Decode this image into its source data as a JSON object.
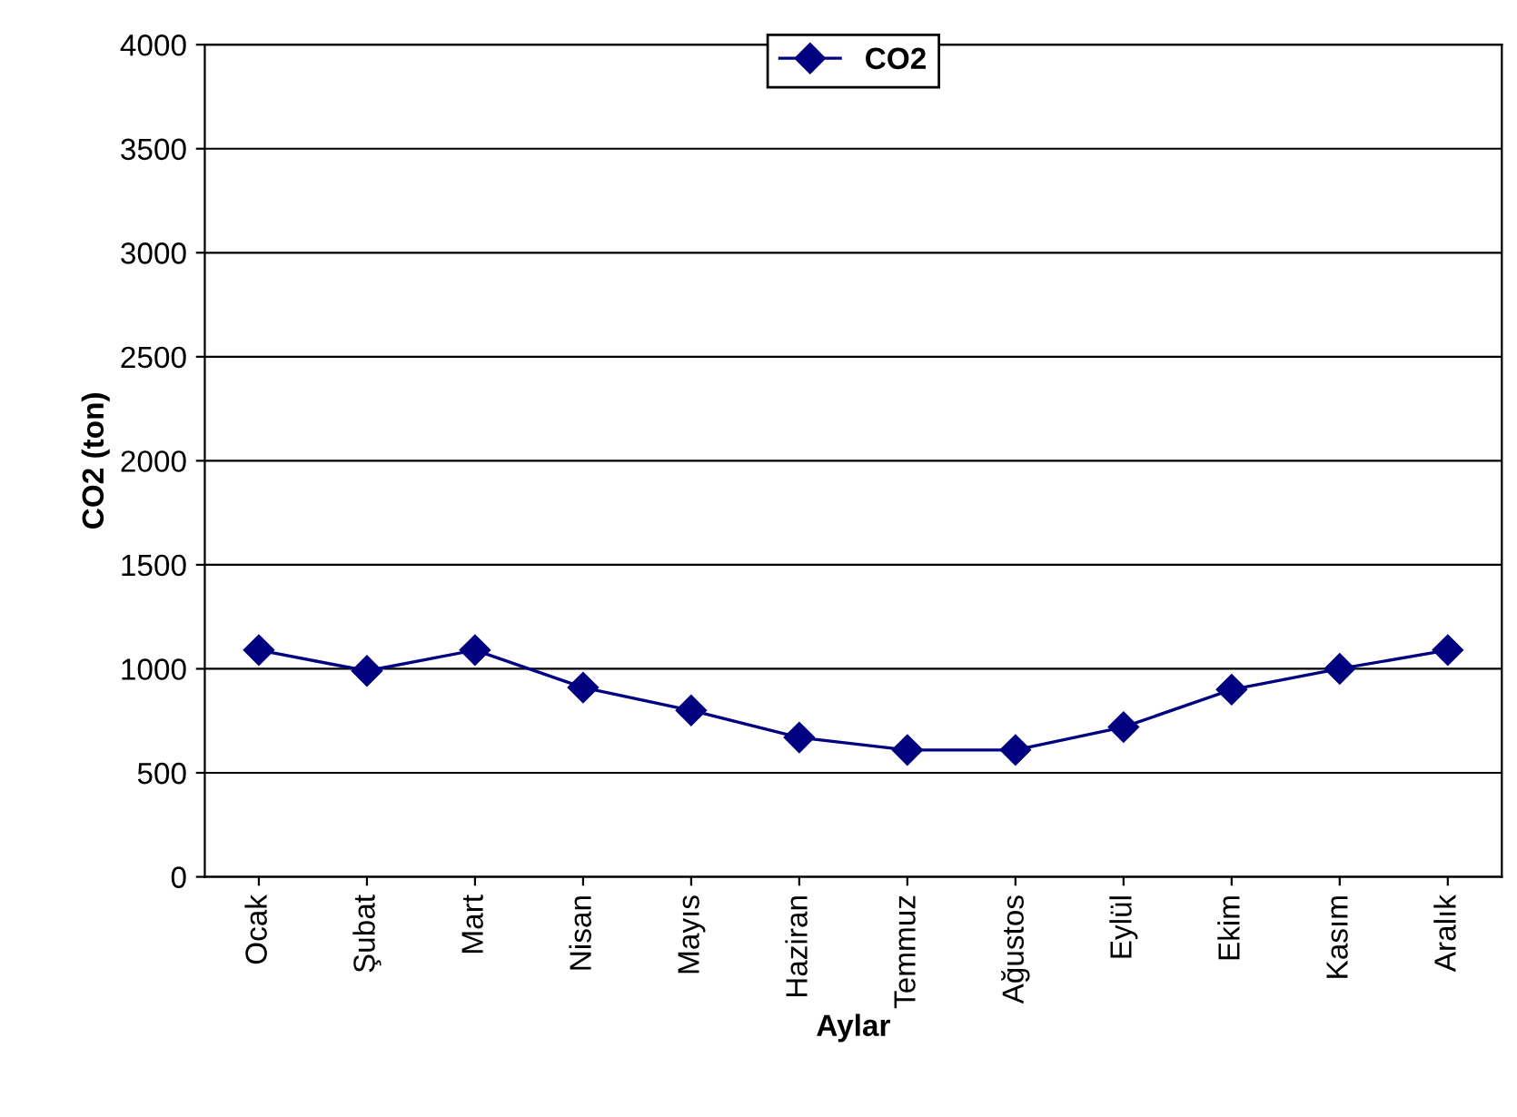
{
  "chart_data": {
    "type": "line",
    "xlabel": "Aylar",
    "ylabel": "CO2 (ton)",
    "categories": [
      "Ocak",
      "Şubat",
      "Mart",
      "Nisan",
      "Mayıs",
      "Haziran",
      "Temmuz",
      "Ağustos",
      "Eylül",
      "Ekim",
      "Kasım",
      "Aralık"
    ],
    "series": [
      {
        "name": "CO2",
        "color": "#000080",
        "values": [
          1090,
          990,
          1090,
          910,
          800,
          670,
          610,
          610,
          720,
          900,
          1000,
          1090
        ]
      }
    ],
    "ylim": [
      0,
      4000
    ],
    "yticks": [
      0,
      500,
      1000,
      1500,
      2000,
      2500,
      3000,
      3500,
      4000
    ],
    "grid": "y",
    "legend": "top",
    "marker": "diamond",
    "line_style": "solid"
  }
}
